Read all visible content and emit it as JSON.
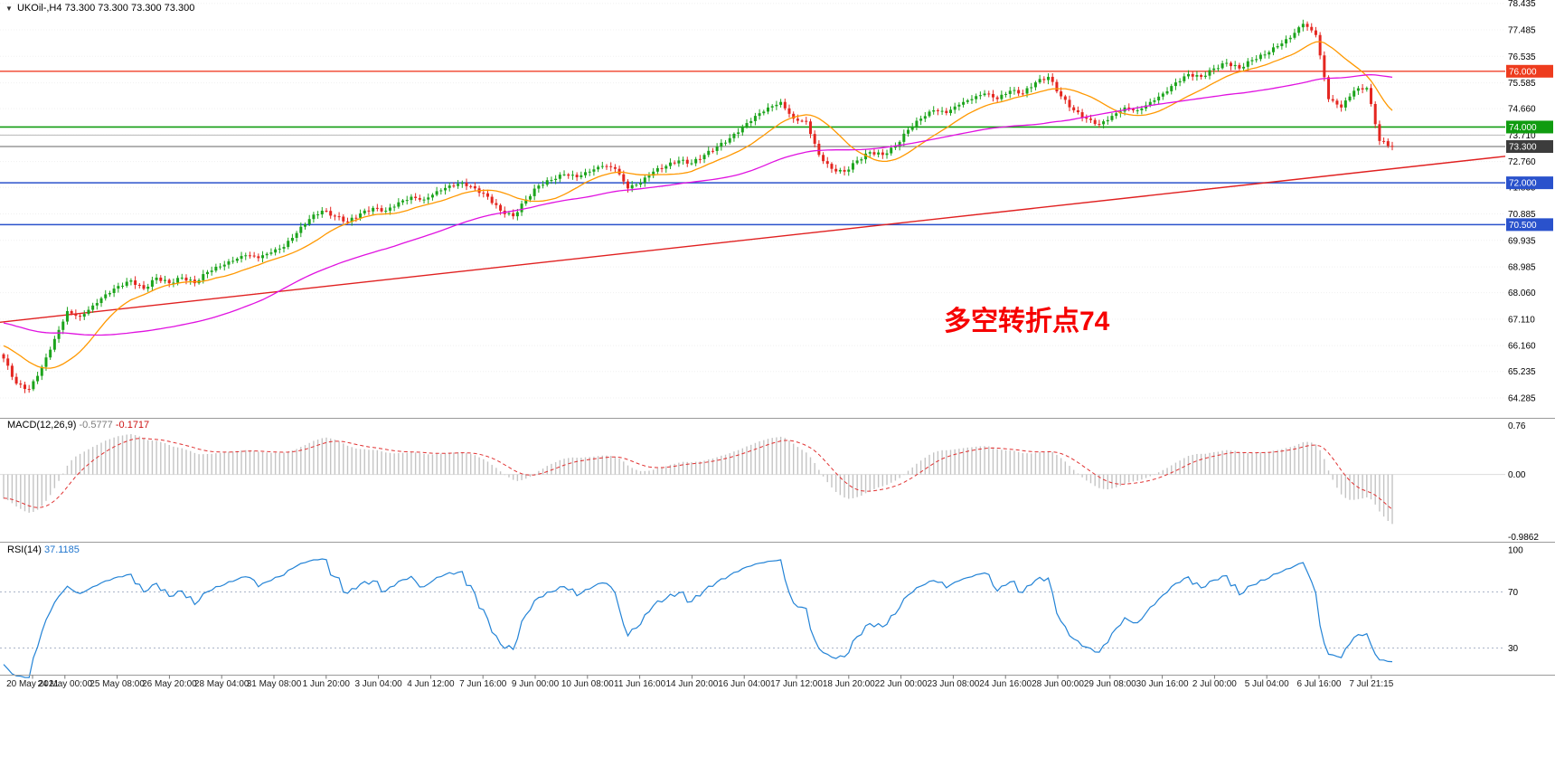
{
  "header": {
    "symbol_marker": "▼",
    "symbol": "UKOil-,H4",
    "quotes": "73.300 73.300 73.300 73.300"
  },
  "chart_data": [
    {
      "type": "candlestick",
      "title": "UKOil- H4 candlestick chart",
      "symbol": "UKOil-",
      "timeframe": "H4",
      "current_price": "73.300",
      "y_axis_labels": [
        "78.435",
        "77.485",
        "76.535",
        "75.585",
        "74.660",
        "73.710",
        "72.760",
        "71.835",
        "70.885",
        "69.935",
        "68.985",
        "68.060",
        "67.110",
        "66.160",
        "65.235",
        "64.285"
      ],
      "x_labels": [
        "20 May 2021",
        "24 May 00:00",
        "25 May 08:00",
        "26 May 20:00",
        "28 May 04:00",
        "31 May 08:00",
        "1 Jun 20:00",
        "3 Jun 04:00",
        "4 Jun 12:00",
        "7 Jun 16:00",
        "9 Jun 00:00",
        "10 Jun 08:00",
        "11 Jun 16:00",
        "14 Jun 20:00",
        "16 Jun 04:00",
        "17 Jun 12:00",
        "18 Jun 20:00",
        "22 Jun 00:00",
        "23 Jun 08:00",
        "24 Jun 16:00",
        "28 Jun 00:00",
        "29 Jun 08:00",
        "30 Jun 16:00",
        "2 Jul 00:00",
        "5 Jul 04:00",
        "6 Jul 16:00",
        "7 Jul 21:15"
      ],
      "price_badges": [
        {
          "value": "76.000",
          "price": 76.0,
          "bg": "#ee3c1e",
          "line_color": "#f0402a",
          "line_width": 1.4
        },
        {
          "value": "74.000",
          "price": 74.0,
          "bg": "#109c10",
          "line_color": "#109c10",
          "line_width": 1.6
        },
        {
          "value": "73.300",
          "price": 73.3,
          "bg": "#3c3c3c",
          "line_color": "#666666",
          "line_width": 1
        },
        {
          "value": "72.000",
          "price": 72.0,
          "bg": "#2a52cc",
          "line_color": "#2a52cc",
          "line_width": 1.6
        },
        {
          "value": "70.500",
          "price": 70.5,
          "bg": "#2a52cc",
          "line_color": "#2a52cc",
          "line_width": 1.6
        }
      ],
      "gray_level": 73.71,
      "trendline": {
        "from_price": 67.0,
        "to_price": 72.95,
        "color": "#e02020"
      },
      "moving_averages": [
        {
          "name": "fast-ma",
          "period": 16,
          "color": "#ff9800"
        },
        {
          "name": "mid-ma",
          "period": 60,
          "color": "#e012e0"
        }
      ],
      "up_color": "#1ca41c",
      "down_color": "#e42620",
      "closes_anchors": [
        65.7,
        64.8,
        64.6,
        65.4,
        66.4,
        67.4,
        67.2,
        67.6,
        68.0,
        68.3,
        68.5,
        68.2,
        68.6,
        68.4,
        68.6,
        68.4,
        68.8,
        69.0,
        69.2,
        69.4,
        69.3,
        69.5,
        69.7,
        70.2,
        70.7,
        71.0,
        70.8,
        70.6,
        70.9,
        71.1,
        71.0,
        71.3,
        71.5,
        71.4,
        71.7,
        71.9,
        72.0,
        71.8,
        71.5,
        71.0,
        70.8,
        71.4,
        71.9,
        72.1,
        72.3,
        72.2,
        72.4,
        72.6,
        72.5,
        71.8,
        72.0,
        72.4,
        72.6,
        72.8,
        72.7,
        73.0,
        73.3,
        73.6,
        74.0,
        74.4,
        74.7,
        74.9,
        74.3,
        74.2,
        73.0,
        72.5,
        72.4,
        72.8,
        73.1,
        73.0,
        73.3,
        73.9,
        74.3,
        74.6,
        74.5,
        74.8,
        75.0,
        75.2,
        75.0,
        75.3,
        75.2,
        75.6,
        75.8,
        75.1,
        74.6,
        74.3,
        74.1,
        74.4,
        74.7,
        74.6,
        74.9,
        75.2,
        75.6,
        75.9,
        75.8,
        76.1,
        76.3,
        76.1,
        76.4,
        76.6,
        76.9,
        77.2,
        77.7,
        77.3,
        75.0,
        74.7,
        75.3,
        75.4,
        73.5,
        73.3
      ],
      "upsample": 3,
      "ma_seed": {
        "from": 68.2,
        "to": 65.8,
        "bars": 45
      },
      "annotation": {
        "text": "多空转折点74",
        "color": "#f60000"
      }
    },
    {
      "type": "bar",
      "name": "MACD",
      "label": "MACD(12,26,9)",
      "values_text": [
        "-0.5777",
        "-0.1717"
      ],
      "params": {
        "fast": 12,
        "slow": 26,
        "signal": 9
      },
      "y_axis_labels": [
        "0.76",
        "0.00",
        "-0.9862"
      ],
      "range": [
        -0.9862,
        0.76
      ],
      "histogram_color": "#c4c4c4",
      "signal_color": "#e03030",
      "derived_from": "main chart closes"
    },
    {
      "type": "line",
      "name": "RSI",
      "label": "RSI(14)",
      "value_text": "37.1185",
      "period": 14,
      "y_axis_labels": [
        "100",
        "70",
        "30"
      ],
      "levels": [
        70,
        30
      ],
      "line_color": "#2383d6"
    }
  ]
}
